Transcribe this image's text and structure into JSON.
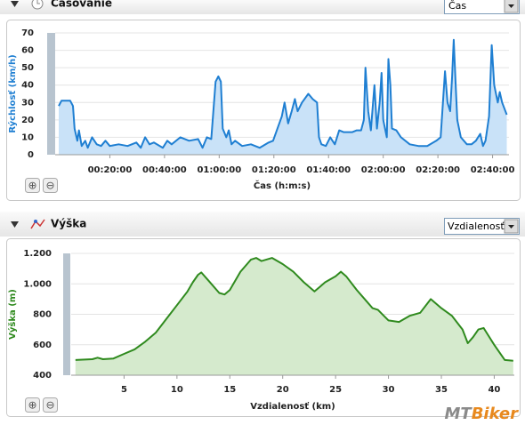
{
  "sections": [
    {
      "title": "Časovanie",
      "dropdown": "Čas"
    },
    {
      "title": "Výška",
      "dropdown": "Vzdialenosť"
    }
  ],
  "logo": {
    "prefix": "MT",
    "suffix": "Biker"
  },
  "chart_data": [
    {
      "type": "area",
      "y_label": "Rýchlosť (km/h)",
      "x_label": "Čas (h:m:s)",
      "color": "#1f7fd2",
      "fill_color": "#c9e2f8",
      "grid": true,
      "xlim": [
        0,
        166
      ],
      "ylim": [
        0,
        70
      ],
      "yticks": [
        0,
        10,
        20,
        30,
        40,
        50,
        60,
        70
      ],
      "xticks": [
        {
          "value": 20,
          "label": "00:20:00"
        },
        {
          "value": 40,
          "label": "00:40:00"
        },
        {
          "value": 60,
          "label": "01:00:00"
        },
        {
          "value": 80,
          "label": "01:20:00"
        },
        {
          "value": 100,
          "label": "01:40:00"
        },
        {
          "value": 120,
          "label": "02:00:00"
        },
        {
          "value": 140,
          "label": "02:20:00"
        },
        {
          "value": 160,
          "label": "02:40:00"
        }
      ],
      "x": [
        1.3,
        2.3,
        3.9,
        5.5,
        6.5,
        7.1,
        8.1,
        8.7,
        9.7,
        11.0,
        11.9,
        13.5,
        15.2,
        16.8,
        18.4,
        20.0,
        23.2,
        26.5,
        29.7,
        31.3,
        32.9,
        34.5,
        36.1,
        39.4,
        41.0,
        42.6,
        45.8,
        49.0,
        52.3,
        53.9,
        55.5,
        57.1,
        58.7,
        59.7,
        60.6,
        61.3,
        62.6,
        63.5,
        64.5,
        65.8,
        68.4,
        71.6,
        74.8,
        78.1,
        79.7,
        81.3,
        82.9,
        83.9,
        85.2,
        86.5,
        87.7,
        88.7,
        90.3,
        92.6,
        94.2,
        95.8,
        96.5,
        97.4,
        99.0,
        100.6,
        102.3,
        103.9,
        105.5,
        108.7,
        110.3,
        111.9,
        112.9,
        113.5,
        114.5,
        115.5,
        116.8,
        117.7,
        118.7,
        119.4,
        120.0,
        121.3,
        121.9,
        122.6,
        123.2,
        124.8,
        126.5,
        129.7,
        132.9,
        136.1,
        139.4,
        141.0,
        142.6,
        143.5,
        144.5,
        145.2,
        145.8,
        146.5,
        147.1,
        148.4,
        150.6,
        152.3,
        153.9,
        155.5,
        156.5,
        157.4,
        158.7,
        159.7,
        160.6,
        161.9,
        162.6,
        163.5,
        165.2
      ],
      "values": [
        28,
        31,
        31,
        31,
        28,
        15,
        8,
        14,
        5,
        8,
        4,
        10,
        6,
        5,
        8,
        5,
        6,
        5,
        7,
        4,
        10,
        6,
        7,
        4,
        8,
        6,
        10,
        8,
        9,
        4,
        10,
        9,
        42,
        45,
        42,
        15,
        10,
        14,
        6,
        8,
        5,
        6,
        4,
        7,
        8,
        15,
        22,
        30,
        18,
        25,
        32,
        25,
        30,
        35,
        32,
        30,
        10,
        6,
        5,
        10,
        6,
        14,
        13,
        13,
        14,
        14,
        20,
        50,
        25,
        14,
        40,
        15,
        30,
        47,
        20,
        10,
        55,
        40,
        15,
        14,
        10,
        6,
        5,
        5,
        8,
        10,
        48,
        30,
        25,
        45,
        66,
        40,
        20,
        10,
        6,
        6,
        8,
        12,
        5,
        8,
        22,
        63,
        40,
        30,
        36,
        30,
        23
      ]
    },
    {
      "type": "area",
      "y_label": "Výška (m)",
      "x_label": "Vzdialenosť (km)",
      "color": "#2f8a1e",
      "fill_color": "#d5eacd",
      "grid": true,
      "xlim": [
        0,
        41.9
      ],
      "ylim": [
        400,
        1200
      ],
      "yticks": [
        400,
        600,
        800,
        {
          "value": 1000,
          "label": "1.000"
        },
        {
          "value": 1200,
          "label": "1.200"
        }
      ],
      "xticks": [
        5,
        10,
        15,
        20,
        25,
        30,
        35,
        40
      ],
      "x": [
        0.4,
        2,
        2.5,
        3,
        4,
        5,
        6,
        7,
        8,
        9,
        10,
        11,
        11.5,
        12,
        12.3,
        13,
        14,
        14.5,
        15,
        16,
        17,
        17.5,
        18,
        19,
        20,
        21,
        22,
        23,
        23.5,
        24,
        25,
        25.5,
        26,
        27,
        28,
        28.5,
        29,
        30,
        31,
        32,
        33,
        34,
        35,
        36,
        37,
        37.5,
        38,
        38.5,
        39,
        40,
        41,
        41.8
      ],
      "values": [
        500,
        505,
        515,
        505,
        510,
        540,
        570,
        620,
        680,
        770,
        860,
        950,
        1010,
        1060,
        1075,
        1020,
        940,
        930,
        960,
        1080,
        1160,
        1170,
        1150,
        1170,
        1130,
        1080,
        1010,
        950,
        980,
        1010,
        1050,
        1080,
        1050,
        960,
        880,
        840,
        830,
        760,
        750,
        790,
        810,
        900,
        840,
        790,
        700,
        610,
        650,
        700,
        710,
        600,
        500,
        495
      ]
    }
  ]
}
